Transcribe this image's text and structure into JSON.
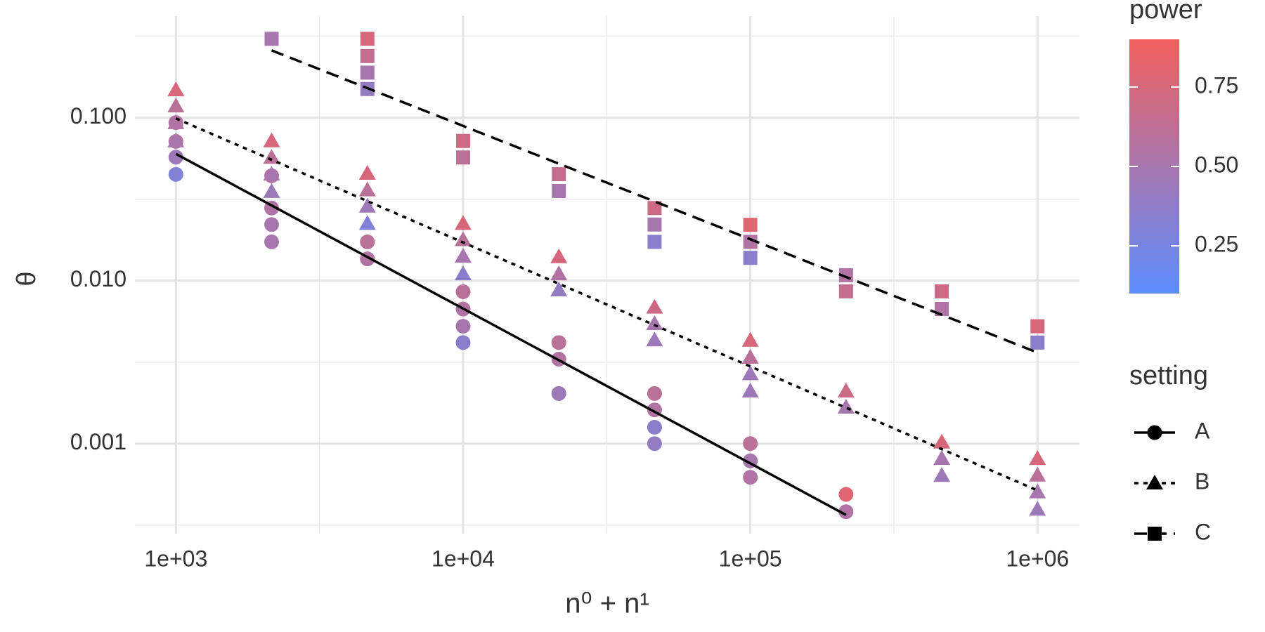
{
  "chart_data": {
    "type": "scatter",
    "x_label": "n⁰ + n¹",
    "y_label": "θ",
    "log_x": true,
    "log_y": true,
    "grid": true,
    "xlim": [
      720,
      1400000
    ],
    "ylim": [
      0.00028,
      0.42
    ],
    "xticks": [
      {
        "value": 1000,
        "label": "1e+03"
      },
      {
        "value": 10000,
        "label": "1e+04"
      },
      {
        "value": 100000,
        "label": "1e+05"
      },
      {
        "value": 1000000,
        "label": "1e+06"
      }
    ],
    "yticks": [
      {
        "value": 0.001,
        "label": "0.001"
      },
      {
        "value": 0.01,
        "label": "0.010"
      },
      {
        "value": 0.1,
        "label": "0.100"
      }
    ],
    "xminor_grid": [
      3162,
      31623,
      316228
    ],
    "yminor_grid": [
      0.000316,
      0.00316,
      0.0316,
      0.316
    ],
    "color_scale": {
      "title": "power",
      "low": "#5b8cff",
      "high": "#f25f5c",
      "limits": [
        0.1,
        0.9
      ],
      "ticks": [
        0.25,
        {
          "value": 0.5,
          "label": "0.50"
        },
        0.75
      ]
    },
    "legend_title": "setting",
    "series": [
      {
        "name": "A",
        "shape": "circle",
        "linetype": "solid",
        "x": [
          1000,
          1000,
          1000,
          1000,
          2154,
          2154,
          2154,
          2154,
          4642,
          4642,
          10000,
          10000,
          10000,
          10000,
          21544,
          21544,
          21544,
          46416,
          46416,
          46416,
          46416,
          100000,
          100000,
          100000,
          215443,
          215443
        ],
        "values": [
          0.0933,
          0.0715,
          0.0573,
          0.0449,
          0.044,
          0.0279,
          0.0221,
          0.0173,
          0.0173,
          0.0136,
          0.00855,
          0.0067,
          0.00525,
          0.00417,
          0.00417,
          0.0033,
          0.00203,
          0.00203,
          0.00161,
          0.00126,
          0.001,
          0.001,
          0.000784,
          0.000621,
          0.000488,
          0.000382
        ],
        "power": [
          0.55,
          0.55,
          0.45,
          0.3,
          0.55,
          0.55,
          0.5,
          0.5,
          0.6,
          0.55,
          0.6,
          0.55,
          0.5,
          0.35,
          0.6,
          0.55,
          0.45,
          0.6,
          0.55,
          0.35,
          0.4,
          0.6,
          0.5,
          0.55,
          0.8,
          0.55
        ],
        "line_x": [
          1000,
          215443
        ],
        "line_y": [
          0.06,
          0.000365
        ]
      },
      {
        "name": "B",
        "shape": "triangle",
        "linetype": "dotted",
        "x": [
          1000,
          1000,
          1000,
          1000,
          2154,
          2154,
          2154,
          2154,
          4642,
          4642,
          4642,
          4642,
          10000,
          10000,
          10000,
          10000,
          21544,
          21544,
          21544,
          46416,
          46416,
          46416,
          100000,
          100000,
          100000,
          100000,
          215443,
          215443,
          464159,
          464159,
          464159,
          1000000,
          1000000,
          1000000,
          1000000
        ],
        "values": [
          0.148,
          0.118,
          0.093,
          0.072,
          0.072,
          0.057,
          0.045,
          0.0352,
          0.0455,
          0.036,
          0.0286,
          0.0224,
          0.0224,
          0.0178,
          0.0141,
          0.011,
          0.014,
          0.011,
          0.00876,
          0.00686,
          0.00544,
          0.00432,
          0.0043,
          0.00338,
          0.00268,
          0.0021,
          0.0021,
          0.00167,
          0.00102,
          0.00081,
          0.000637,
          0.00081,
          0.00064,
          0.000505,
          0.000395
        ],
        "power": [
          0.75,
          0.6,
          0.55,
          0.5,
          0.75,
          0.6,
          0.5,
          0.45,
          0.75,
          0.6,
          0.45,
          0.3,
          0.75,
          0.6,
          0.5,
          0.35,
          0.75,
          0.55,
          0.4,
          0.7,
          0.5,
          0.45,
          0.75,
          0.6,
          0.45,
          0.45,
          0.7,
          0.5,
          0.75,
          0.5,
          0.45,
          0.75,
          0.6,
          0.5,
          0.45
        ],
        "line_x": [
          1000,
          1000000
        ],
        "line_y": [
          0.099,
          0.000516
        ]
      },
      {
        "name": "C",
        "shape": "square",
        "linetype": "dashed",
        "x": [
          2154,
          4642,
          4642,
          4642,
          4642,
          10000,
          10000,
          21544,
          21544,
          46416,
          46416,
          46416,
          100000,
          100000,
          100000,
          215443,
          215443,
          464159,
          464159,
          1000000,
          1000000
        ],
        "values": [
          0.305,
          0.305,
          0.239,
          0.189,
          0.15,
          0.072,
          0.057,
          0.045,
          0.0355,
          0.0279,
          0.0221,
          0.0173,
          0.022,
          0.0173,
          0.0138,
          0.0108,
          0.0086,
          0.0086,
          0.0067,
          0.00525,
          0.00417
        ],
        "power": [
          0.5,
          0.75,
          0.65,
          0.5,
          0.4,
          0.7,
          0.6,
          0.65,
          0.5,
          0.7,
          0.5,
          0.35,
          0.8,
          0.55,
          0.35,
          0.55,
          0.65,
          0.7,
          0.55,
          0.75,
          0.35
        ],
        "line_x": [
          2154,
          1000000
        ],
        "line_y": [
          0.259,
          0.00362
        ]
      }
    ]
  }
}
